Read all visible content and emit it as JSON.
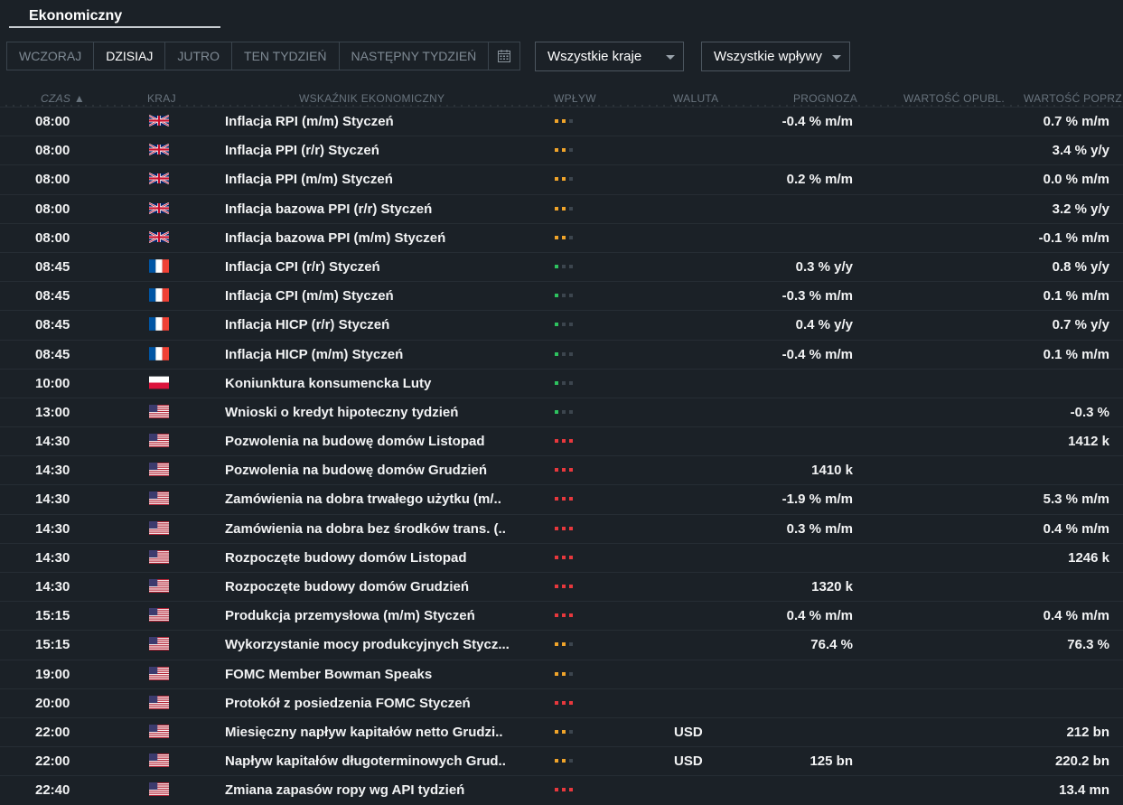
{
  "tab": {
    "title": "Ekonomiczny"
  },
  "day_tabs": [
    {
      "label": "WCZORAJ",
      "active": false
    },
    {
      "label": "DZISIAJ",
      "active": true
    },
    {
      "label": "JUTRO",
      "active": false
    },
    {
      "label": "TEN TYDZIEŃ",
      "active": false
    },
    {
      "label": "NASTĘPNY TYDZIEŃ",
      "active": false
    }
  ],
  "filters": {
    "countries": "Wszystkie kraje",
    "impact": "Wszystkie wpływy"
  },
  "columns": {
    "time": "CZAS ▲",
    "country": "KRAJ",
    "indicator": "WSKAŹNIK EKONOMICZNY",
    "impact": "WPŁYW",
    "currency": "WALUTA",
    "forecast": "PROGNOZA",
    "published": "WARTOŚĆ OPUBL.",
    "previous": "WARTOŚĆ POPRZ"
  },
  "colors": {
    "impact_high": "#e8383d",
    "impact_medium": "#f0a42a",
    "impact_low": "#2ec25f",
    "impact_off": "#3c454e"
  },
  "events": [
    {
      "time": "08:00",
      "country": "uk",
      "name": "Inflacja RPI (m/m) Styczeń",
      "impact": "medium",
      "currency": "",
      "forecast": "-0.4 % m/m",
      "previous": "0.7 % m/m"
    },
    {
      "time": "08:00",
      "country": "uk",
      "name": "Inflacja PPI (r/r) Styczeń",
      "impact": "medium",
      "currency": "",
      "forecast": "",
      "previous": "3.4 % y/y"
    },
    {
      "time": "08:00",
      "country": "uk",
      "name": "Inflacja PPI (m/m) Styczeń",
      "impact": "medium",
      "currency": "",
      "forecast": "0.2 % m/m",
      "previous": "0.0 % m/m"
    },
    {
      "time": "08:00",
      "country": "uk",
      "name": "Inflacja bazowa PPI (r/r) Styczeń",
      "impact": "medium",
      "currency": "",
      "forecast": "",
      "previous": "3.2 % y/y"
    },
    {
      "time": "08:00",
      "country": "uk",
      "name": "Inflacja bazowa PPI (m/m) Styczeń",
      "impact": "medium",
      "currency": "",
      "forecast": "",
      "previous": "-0.1 % m/m"
    },
    {
      "time": "08:45",
      "country": "fr",
      "name": "Inflacja CPI (r/r) Styczeń",
      "impact": "low",
      "currency": "",
      "forecast": "0.3 % y/y",
      "previous": "0.8 % y/y"
    },
    {
      "time": "08:45",
      "country": "fr",
      "name": "Inflacja CPI (m/m) Styczeń",
      "impact": "low",
      "currency": "",
      "forecast": "-0.3 % m/m",
      "previous": "0.1 % m/m"
    },
    {
      "time": "08:45",
      "country": "fr",
      "name": "Inflacja HICP (r/r) Styczeń",
      "impact": "low",
      "currency": "",
      "forecast": "0.4 % y/y",
      "previous": "0.7 % y/y"
    },
    {
      "time": "08:45",
      "country": "fr",
      "name": "Inflacja HICP (m/m) Styczeń",
      "impact": "low",
      "currency": "",
      "forecast": "-0.4 % m/m",
      "previous": "0.1 % m/m"
    },
    {
      "time": "10:00",
      "country": "pl",
      "name": "Koniunktura konsumencka Luty",
      "impact": "low",
      "currency": "",
      "forecast": "",
      "previous": ""
    },
    {
      "time": "13:00",
      "country": "us",
      "name": "Wnioski o kredyt hipoteczny tydzień",
      "impact": "low",
      "currency": "",
      "forecast": "",
      "previous": "-0.3 %"
    },
    {
      "time": "14:30",
      "country": "us",
      "name": "Pozwolenia na budowę domów Listopad",
      "impact": "high",
      "currency": "",
      "forecast": "",
      "previous": "1412 k"
    },
    {
      "time": "14:30",
      "country": "us",
      "name": "Pozwolenia na budowę domów Grudzień",
      "impact": "high",
      "currency": "",
      "forecast": "1410 k",
      "previous": ""
    },
    {
      "time": "14:30",
      "country": "us",
      "name": "Zamówienia na dobra trwałego użytku (m/..",
      "impact": "high",
      "currency": "",
      "forecast": "-1.9 % m/m",
      "previous": "5.3 % m/m"
    },
    {
      "time": "14:30",
      "country": "us",
      "name": "Zamówienia na dobra bez środków trans. (..",
      "impact": "high",
      "currency": "",
      "forecast": "0.3 % m/m",
      "previous": "0.4 % m/m"
    },
    {
      "time": "14:30",
      "country": "us",
      "name": "Rozpoczęte budowy domów Listopad",
      "impact": "high",
      "currency": "",
      "forecast": "",
      "previous": "1246 k"
    },
    {
      "time": "14:30",
      "country": "us",
      "name": "Rozpoczęte budowy domów Grudzień",
      "impact": "high",
      "currency": "",
      "forecast": "1320 k",
      "previous": ""
    },
    {
      "time": "15:15",
      "country": "us",
      "name": "Produkcja przemysłowa (m/m) Styczeń",
      "impact": "high",
      "currency": "",
      "forecast": "0.4 % m/m",
      "previous": "0.4 % m/m"
    },
    {
      "time": "15:15",
      "country": "us",
      "name": "Wykorzystanie mocy produkcyjnych Stycz...",
      "impact": "medium",
      "currency": "",
      "forecast": "76.4 %",
      "previous": "76.3 %"
    },
    {
      "time": "19:00",
      "country": "us",
      "name": "FOMC Member Bowman Speaks",
      "impact": "medium",
      "currency": "",
      "forecast": "",
      "previous": ""
    },
    {
      "time": "20:00",
      "country": "us",
      "name": "Protokół z posiedzenia FOMC Styczeń",
      "impact": "high",
      "currency": "",
      "forecast": "",
      "previous": ""
    },
    {
      "time": "22:00",
      "country": "us",
      "name": "Miesięczny napływ kapitałów netto Grudzi..",
      "impact": "medium",
      "currency": "USD",
      "forecast": "",
      "previous": "212 bn"
    },
    {
      "time": "22:00",
      "country": "us",
      "name": "Napływ kapitałów długoterminowych Grud..",
      "impact": "medium",
      "currency": "USD",
      "forecast": "125 bn",
      "previous": "220.2 bn"
    },
    {
      "time": "22:40",
      "country": "us",
      "name": "Zmiana zapasów ropy wg API tydzień",
      "impact": "high",
      "currency": "",
      "forecast": "",
      "previous": "13.4 mn"
    }
  ]
}
